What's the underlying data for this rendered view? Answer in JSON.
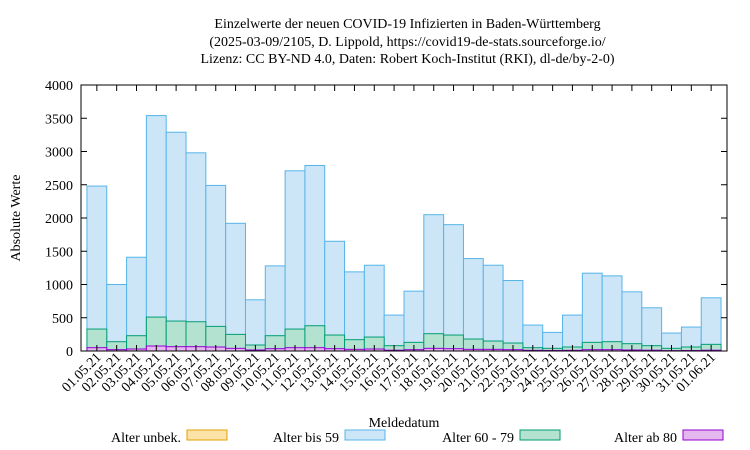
{
  "title_lines": [
    "Einzelwerte der neuen COVID-19 Infizierten in Baden-Württemberg",
    "(2025-03-09/2105, D. Lippold, https://covid19-de-stats.sourceforge.io/",
    "Lizenz: CC BY-ND 4.0, Daten: Robert Koch-Institut (RKI), dl-de/by-2-0)"
  ],
  "chart_data": {
    "type": "bar",
    "stacked": false,
    "xlabel": "Meldedatum",
    "ylabel": "Absolute Werte",
    "ylim": [
      0,
      4000
    ],
    "yticks": [
      0,
      500,
      1000,
      1500,
      2000,
      2500,
      3000,
      3500,
      4000
    ],
    "grid": false,
    "legend_position": "bottom",
    "categories": [
      "01.05.21",
      "02.05.21",
      "03.05.21",
      "04.05.21",
      "05.05.21",
      "06.05.21",
      "07.05.21",
      "08.05.21",
      "09.05.21",
      "10.05.21",
      "11.05.21",
      "12.05.21",
      "13.05.21",
      "14.05.21",
      "15.05.21",
      "16.05.21",
      "17.05.21",
      "18.05.21",
      "19.05.21",
      "20.05.21",
      "21.05.21",
      "22.05.21",
      "23.05.21",
      "24.05.21",
      "25.05.21",
      "26.05.21",
      "27.05.21",
      "28.05.21",
      "29.05.21",
      "30.05.21",
      "31.05.21",
      "01.06.21"
    ],
    "series": [
      {
        "name": "Alter unbek.",
        "fill": "#fbe3a8",
        "stroke": "#e69f00",
        "values": [
          5,
          2,
          3,
          6,
          5,
          5,
          4,
          3,
          1,
          2,
          4,
          4,
          3,
          2,
          2,
          1,
          2,
          3,
          3,
          2,
          2,
          2,
          1,
          1,
          1,
          2,
          2,
          2,
          1,
          1,
          1,
          2
        ]
      },
      {
        "name": "Alter bis 59",
        "fill": "#cce6f8",
        "stroke": "#56b4e9",
        "values": [
          2480,
          1000,
          1410,
          3540,
          3290,
          2980,
          2490,
          1920,
          770,
          1280,
          2710,
          2790,
          1650,
          1190,
          1290,
          540,
          900,
          2050,
          1900,
          1390,
          1290,
          1060,
          390,
          280,
          540,
          1170,
          1130,
          890,
          650,
          270,
          360,
          800
        ]
      },
      {
        "name": "Alter 60 - 79",
        "fill": "#b3e2d1",
        "stroke": "#009e73",
        "values": [
          330,
          140,
          230,
          510,
          450,
          440,
          370,
          250,
          90,
          230,
          330,
          380,
          240,
          170,
          210,
          80,
          130,
          260,
          240,
          180,
          150,
          120,
          50,
          40,
          60,
          130,
          140,
          110,
          80,
          40,
          60,
          100
        ]
      },
      {
        "name": "Alter ab 80",
        "fill": "#e4b8ef",
        "stroke": "#9400d3",
        "values": [
          50,
          20,
          30,
          75,
          65,
          65,
          60,
          40,
          15,
          35,
          50,
          50,
          35,
          25,
          30,
          12,
          20,
          40,
          35,
          25,
          25,
          20,
          10,
          8,
          10,
          20,
          20,
          15,
          12,
          6,
          8,
          12
        ]
      }
    ]
  }
}
